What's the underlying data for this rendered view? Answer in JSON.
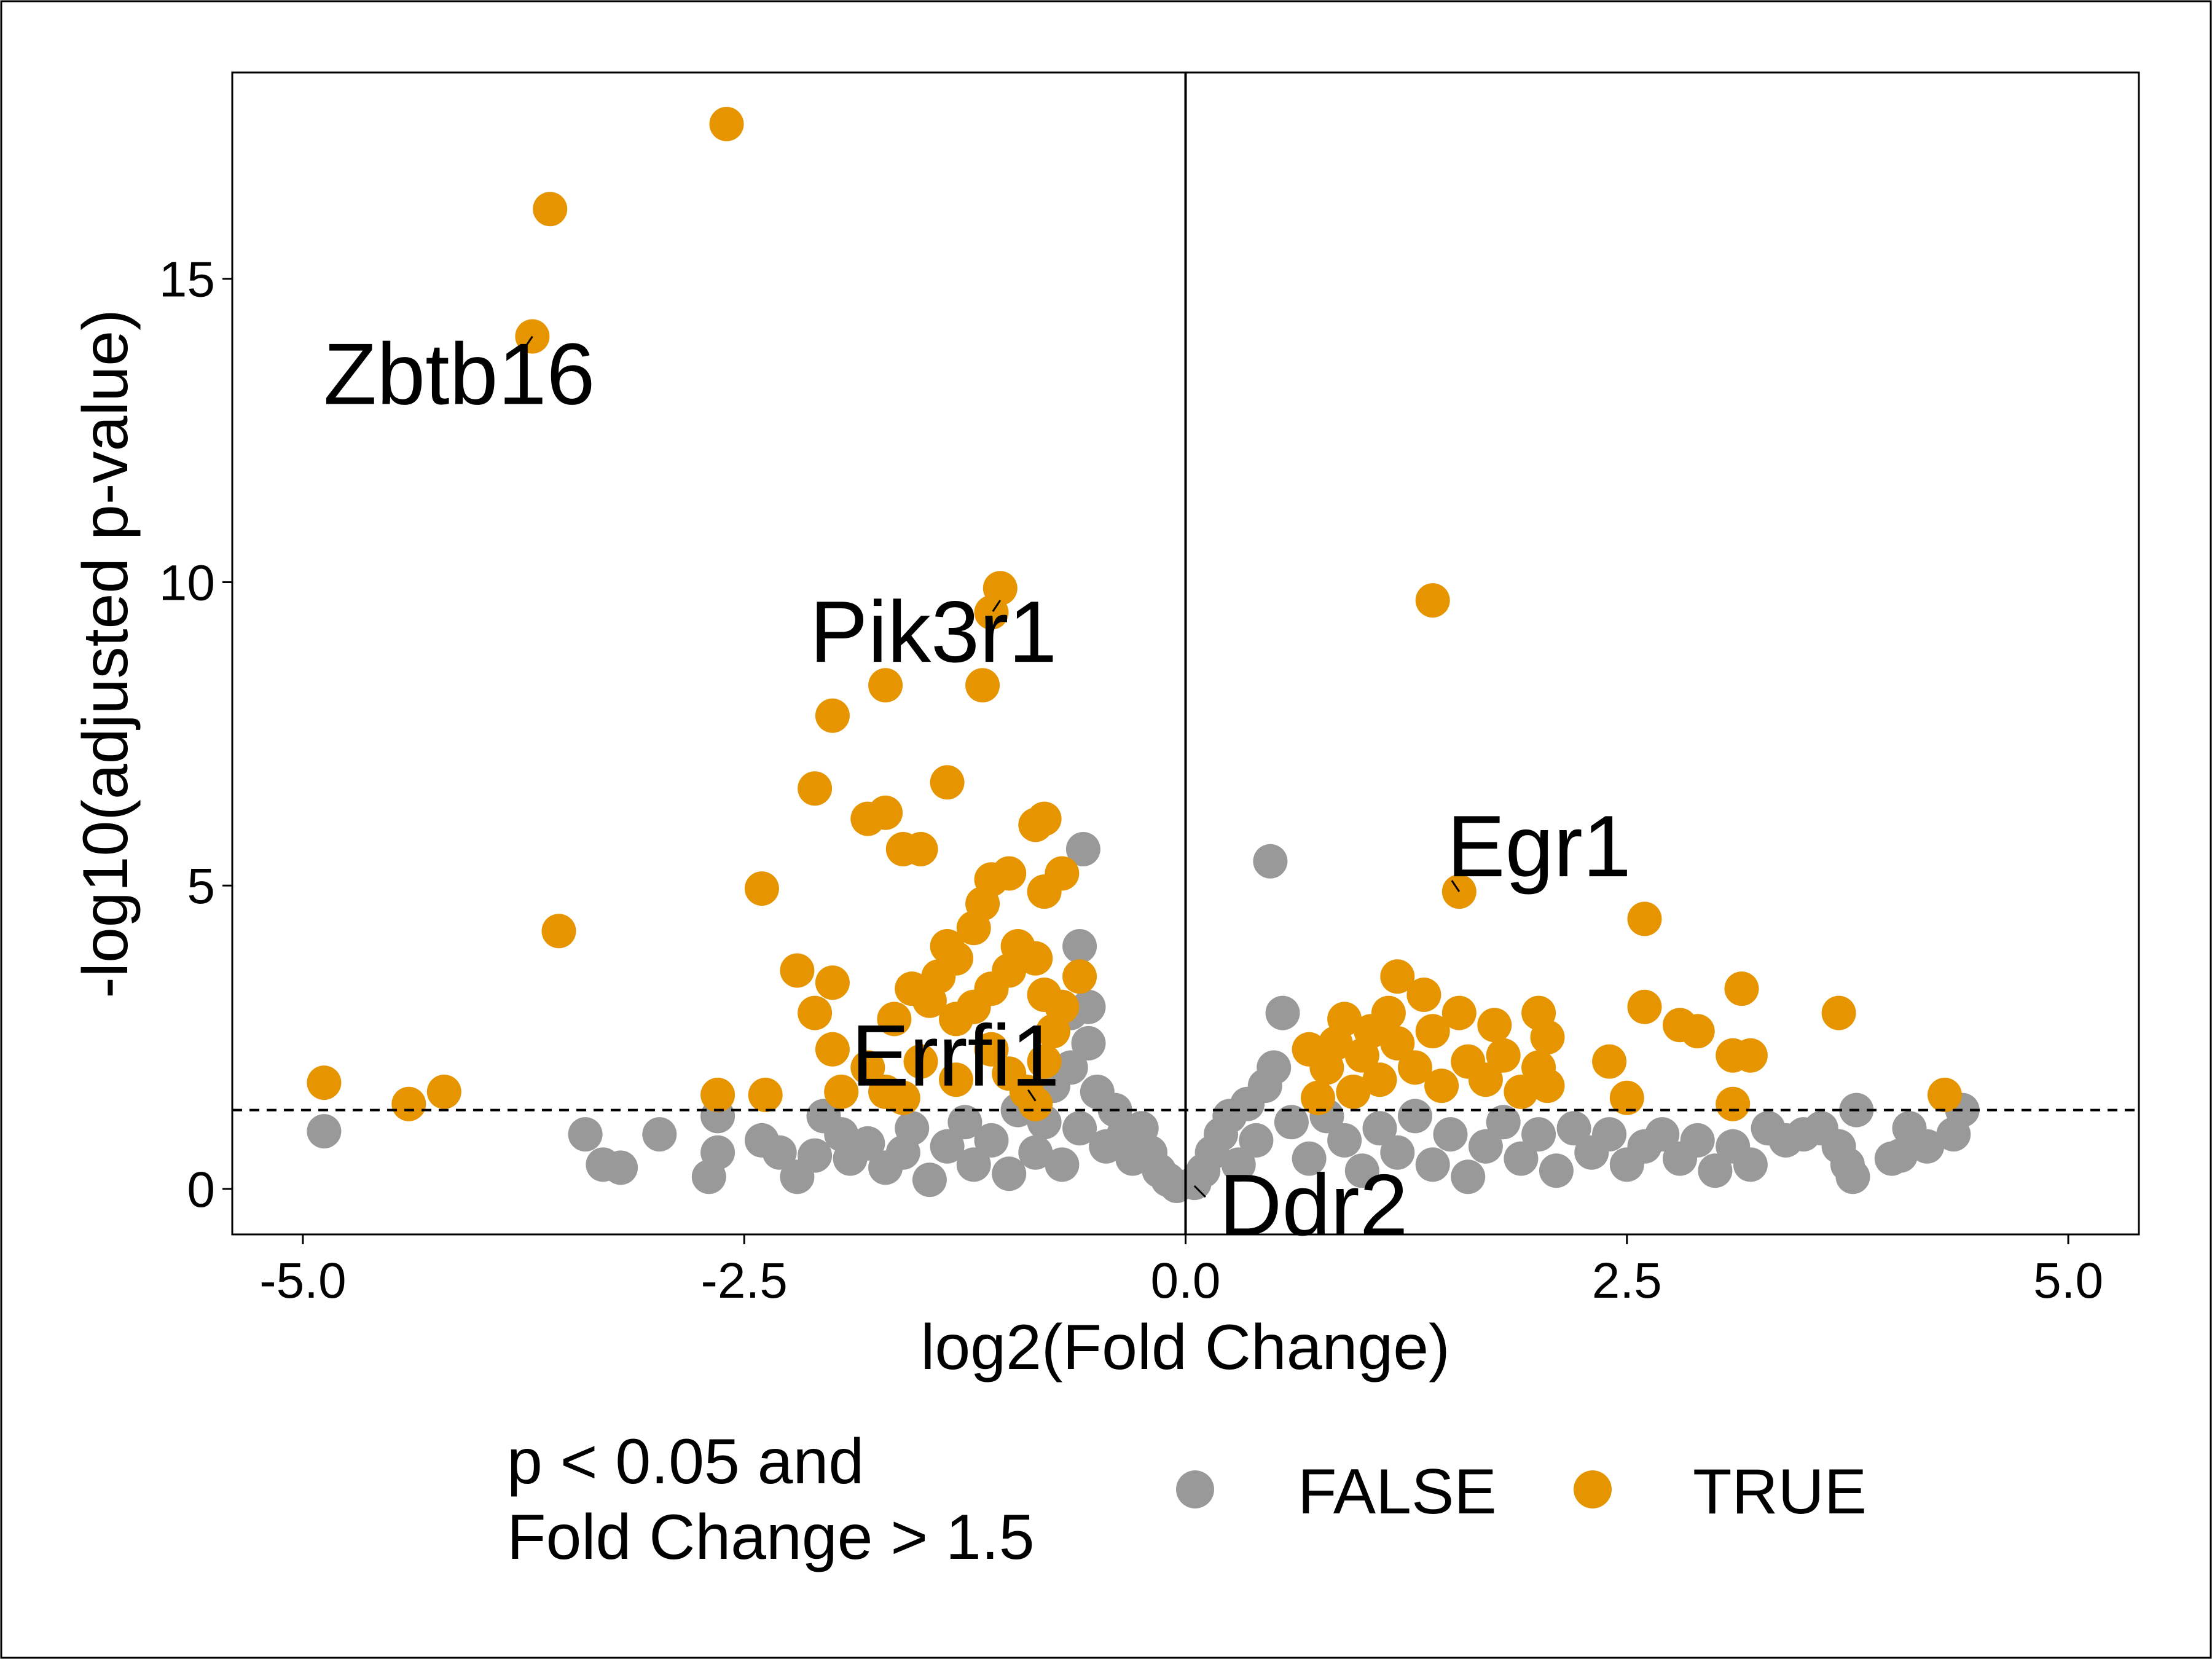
{
  "chart_data": {
    "type": "scatter",
    "xlabel": "log2(Fold Change)",
    "ylabel": "-log10(adjusted p-value)",
    "xlim": [
      -5.4,
      5.4
    ],
    "ylim": [
      -0.75,
      18.4
    ],
    "x_ticks": [
      -5.0,
      -2.5,
      0.0,
      2.5,
      5.0
    ],
    "x_tick_labels": [
      "-5.0",
      "-2.5",
      "0.0",
      "2.5",
      "5.0"
    ],
    "y_ticks": [
      0,
      5,
      10,
      15
    ],
    "y_tick_labels": [
      "0",
      "5",
      "10",
      "15"
    ],
    "grid": false,
    "threshold_line_y": 1.3,
    "vertical_line_x": 0,
    "legend": {
      "title_lines": [
        "p < 0.05 and",
        "Fold Change > 1.5"
      ],
      "position": "bottom",
      "entries": [
        {
          "label": "FALSE",
          "color": "#999999"
        },
        {
          "label": "TRUE",
          "color": "#E69500"
        }
      ]
    },
    "series": [
      {
        "name": "FALSE",
        "color": "#999999",
        "points": [
          [
            -4.88,
            0.95
          ],
          [
            -3.4,
            0.9
          ],
          [
            -3.3,
            0.4
          ],
          [
            -3.2,
            0.35
          ],
          [
            -2.98,
            0.9
          ],
          [
            -2.7,
            0.2
          ],
          [
            -2.65,
            0.6
          ],
          [
            -2.65,
            1.2
          ],
          [
            -2.4,
            0.8
          ],
          [
            -2.3,
            0.6
          ],
          [
            -2.2,
            0.2
          ],
          [
            -2.1,
            0.55
          ],
          [
            -2.05,
            1.2
          ],
          [
            -1.95,
            0.9
          ],
          [
            -1.9,
            0.5
          ],
          [
            -1.8,
            0.75
          ],
          [
            -1.7,
            0.35
          ],
          [
            -1.6,
            0.6
          ],
          [
            -1.55,
            1.0
          ],
          [
            -1.45,
            0.15
          ],
          [
            -1.35,
            0.7
          ],
          [
            -1.25,
            1.1
          ],
          [
            -1.2,
            0.4
          ],
          [
            -1.1,
            0.8
          ],
          [
            -1.0,
            0.25
          ],
          [
            -0.95,
            1.3
          ],
          [
            -0.85,
            0.6
          ],
          [
            -0.8,
            1.1
          ],
          [
            -0.75,
            1.7
          ],
          [
            -0.7,
            0.4
          ],
          [
            -0.65,
            2.0
          ],
          [
            -0.6,
            1.0
          ],
          [
            -0.55,
            2.4
          ],
          [
            -0.5,
            1.6
          ],
          [
            -0.45,
            0.7
          ],
          [
            -0.4,
            1.3
          ],
          [
            -0.35,
            0.9
          ],
          [
            -0.3,
            0.5
          ],
          [
            -0.25,
            1.0
          ],
          [
            -0.2,
            0.6
          ],
          [
            -0.15,
            0.3
          ],
          [
            -0.1,
            0.15
          ],
          [
            -0.05,
            0.05
          ],
          [
            -0.55,
            3.0
          ],
          [
            -0.58,
            5.6
          ],
          [
            -0.6,
            4.0
          ],
          [
            -0.65,
            2.9
          ],
          [
            0.05,
            0.1
          ],
          [
            0.1,
            0.3
          ],
          [
            0.15,
            0.6
          ],
          [
            0.2,
            0.9
          ],
          [
            0.25,
            1.2
          ],
          [
            0.3,
            0.4
          ],
          [
            0.35,
            1.4
          ],
          [
            0.4,
            0.8
          ],
          [
            0.45,
            1.7
          ],
          [
            0.5,
            2.0
          ],
          [
            0.55,
            2.9
          ],
          [
            0.48,
            5.4
          ],
          [
            0.6,
            1.1
          ],
          [
            0.7,
            0.5
          ],
          [
            0.8,
            1.2
          ],
          [
            0.9,
            0.8
          ],
          [
            1.0,
            0.3
          ],
          [
            1.1,
            1.0
          ],
          [
            1.2,
            0.6
          ],
          [
            1.3,
            1.2
          ],
          [
            1.4,
            0.4
          ],
          [
            1.5,
            0.9
          ],
          [
            1.6,
            0.2
          ],
          [
            1.7,
            0.7
          ],
          [
            1.8,
            1.1
          ],
          [
            1.9,
            0.5
          ],
          [
            2.0,
            0.9
          ],
          [
            2.1,
            0.3
          ],
          [
            2.2,
            1.0
          ],
          [
            2.3,
            0.6
          ],
          [
            2.4,
            0.9
          ],
          [
            2.5,
            0.4
          ],
          [
            2.6,
            0.7
          ],
          [
            2.7,
            0.9
          ],
          [
            2.8,
            0.5
          ],
          [
            2.9,
            0.8
          ],
          [
            3.0,
            0.3
          ],
          [
            3.1,
            0.7
          ],
          [
            3.2,
            0.4
          ],
          [
            3.3,
            1.0
          ],
          [
            3.4,
            0.8
          ],
          [
            3.5,
            0.9
          ],
          [
            3.6,
            1.0
          ],
          [
            3.7,
            0.7
          ],
          [
            3.75,
            0.4
          ],
          [
            3.78,
            0.2
          ],
          [
            3.8,
            1.3
          ],
          [
            4.0,
            0.5
          ],
          [
            4.05,
            0.55
          ],
          [
            4.1,
            1.0
          ],
          [
            4.2,
            0.7
          ],
          [
            4.35,
            0.9
          ],
          [
            4.4,
            1.3
          ]
        ]
      },
      {
        "name": "TRUE",
        "color": "#E69500",
        "points": [
          [
            -2.6,
            17.55
          ],
          [
            -3.6,
            16.15
          ],
          [
            -3.7,
            14.05
          ],
          [
            -3.55,
            4.25
          ],
          [
            -4.88,
            1.75
          ],
          [
            -4.4,
            1.4
          ],
          [
            -4.2,
            1.6
          ],
          [
            -2.65,
            1.55
          ],
          [
            -2.38,
            1.55
          ],
          [
            -2.4,
            4.95
          ],
          [
            -2.2,
            3.6
          ],
          [
            -2.1,
            2.9
          ],
          [
            -2.0,
            3.4
          ],
          [
            -2.0,
            2.3
          ],
          [
            -1.95,
            1.6
          ],
          [
            -2.0,
            7.8
          ],
          [
            -2.1,
            6.6
          ],
          [
            -1.7,
            8.3
          ],
          [
            -1.8,
            6.1
          ],
          [
            -1.7,
            6.2
          ],
          [
            -1.6,
            5.6
          ],
          [
            -1.5,
            5.6
          ],
          [
            -1.35,
            6.7
          ],
          [
            -1.15,
            8.3
          ],
          [
            -1.05,
            9.9
          ],
          [
            -1.1,
            9.5
          ],
          [
            -0.8,
            6.1
          ],
          [
            -0.85,
            6.0
          ],
          [
            -0.7,
            5.2
          ],
          [
            -0.8,
            4.9
          ],
          [
            -1.0,
            5.2
          ],
          [
            -1.1,
            5.1
          ],
          [
            -1.15,
            4.7
          ],
          [
            -1.2,
            4.3
          ],
          [
            -1.3,
            3.8
          ],
          [
            -1.35,
            4.0
          ],
          [
            -1.4,
            3.5
          ],
          [
            -1.45,
            3.1
          ],
          [
            -1.55,
            3.3
          ],
          [
            -1.65,
            2.8
          ],
          [
            -1.3,
            2.8
          ],
          [
            -1.2,
            3.0
          ],
          [
            -1.1,
            3.3
          ],
          [
            -1.0,
            3.6
          ],
          [
            -0.95,
            4.0
          ],
          [
            -0.85,
            3.8
          ],
          [
            -0.8,
            3.2
          ],
          [
            -0.75,
            2.6
          ],
          [
            -0.7,
            3.0
          ],
          [
            -0.8,
            2.1
          ],
          [
            -0.9,
            1.6
          ],
          [
            -1.0,
            1.9
          ],
          [
            -1.1,
            2.3
          ],
          [
            -1.3,
            1.8
          ],
          [
            -1.5,
            2.1
          ],
          [
            -1.7,
            1.6
          ],
          [
            -1.8,
            2.0
          ],
          [
            -1.6,
            1.5
          ],
          [
            -0.6,
            3.5
          ],
          [
            -0.85,
            1.4
          ],
          [
            1.4,
            9.7
          ],
          [
            1.55,
            4.9
          ],
          [
            2.6,
            4.45
          ],
          [
            3.15,
            3.3
          ],
          [
            3.7,
            2.9
          ],
          [
            2.6,
            3.0
          ],
          [
            2.8,
            2.7
          ],
          [
            2.9,
            2.6
          ],
          [
            3.1,
            2.2
          ],
          [
            3.2,
            2.2
          ],
          [
            2.4,
            2.1
          ],
          [
            2.5,
            1.5
          ],
          [
            3.1,
            1.4
          ],
          [
            4.3,
            1.55
          ],
          [
            1.2,
            3.5
          ],
          [
            1.35,
            3.2
          ],
          [
            1.55,
            2.9
          ],
          [
            1.75,
            2.7
          ],
          [
            2.0,
            2.9
          ],
          [
            2.05,
            2.5
          ],
          [
            0.75,
            1.5
          ],
          [
            0.8,
            2.0
          ],
          [
            0.85,
            2.4
          ],
          [
            0.9,
            2.8
          ],
          [
            1.0,
            2.2
          ],
          [
            1.05,
            2.6
          ],
          [
            1.1,
            1.8
          ],
          [
            1.2,
            2.4
          ],
          [
            1.3,
            2.0
          ],
          [
            1.4,
            2.6
          ],
          [
            1.45,
            1.7
          ],
          [
            1.6,
            2.1
          ],
          [
            1.7,
            1.8
          ],
          [
            1.8,
            2.2
          ],
          [
            1.9,
            1.6
          ],
          [
            2.0,
            2.0
          ],
          [
            2.05,
            1.7
          ],
          [
            0.7,
            2.3
          ],
          [
            0.95,
            1.6
          ],
          [
            1.15,
            2.9
          ]
        ]
      }
    ],
    "annotations": [
      {
        "text": "Zbtb16",
        "x": -3.7,
        "y": 14.05
      },
      {
        "text": "Pik3r1",
        "x": -1.05,
        "y": 9.7
      },
      {
        "text": "Egr1",
        "x": 1.55,
        "y": 4.9
      },
      {
        "text": "Errfi1",
        "x": -0.85,
        "y": 1.45
      },
      {
        "text": "Ddr2",
        "x": 0.05,
        "y": 0.05
      }
    ]
  }
}
